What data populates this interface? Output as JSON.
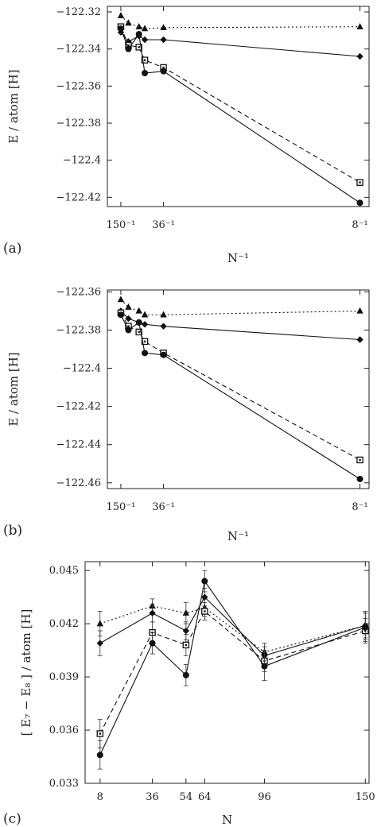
{
  "figure": {
    "panels": [
      {
        "label": "(a)"
      },
      {
        "label": "(b)"
      },
      {
        "label": "(c)"
      }
    ]
  },
  "chart_data": [
    {
      "panel": "(a)",
      "type": "line",
      "xlabel": "N⁻¹",
      "ylabel": "E / atom [H]",
      "xlim": [
        0.0,
        0.1295
      ],
      "ylim": [
        -122.425,
        -122.317
      ],
      "yticks": [
        -122.32,
        -122.34,
        -122.36,
        -122.38,
        -122.4,
        -122.42
      ],
      "ytick_labels": [
        "−122.32",
        "−122.34",
        "−122.36",
        "−122.38",
        "−122.4",
        "−122.42"
      ],
      "xticks": [
        0.006667,
        0.027778,
        0.125
      ],
      "xtick_labels": [
        "150⁻¹",
        "36⁻¹",
        "8⁻¹"
      ],
      "series": [
        {
          "marker": "triangle",
          "dash": "dotted",
          "x": [
            0.006667,
            0.010417,
            0.015625,
            0.018519,
            0.027778,
            0.125
          ],
          "y": [
            -122.322,
            -122.326,
            -122.328,
            -122.329,
            -122.3285,
            -122.328
          ]
        },
        {
          "marker": "diamond",
          "dash": "solid",
          "x": [
            0.006667,
            0.010417,
            0.015625,
            0.018519,
            0.027778,
            0.125
          ],
          "y": [
            -122.331,
            -122.336,
            -122.333,
            -122.335,
            -122.335,
            -122.344
          ]
        },
        {
          "marker": "square-open",
          "dash": "dashed",
          "x": [
            0.006667,
            0.010417,
            0.015625,
            0.018519,
            0.027778,
            0.125
          ],
          "y": [
            -122.328,
            -122.338,
            -122.339,
            -122.346,
            -122.35,
            -122.412
          ]
        },
        {
          "marker": "circle",
          "dash": "solid",
          "x": [
            0.006667,
            0.010417,
            0.015625,
            0.018519,
            0.027778,
            0.125
          ],
          "y": [
            -122.329,
            -122.34,
            -122.332,
            -122.353,
            -122.352,
            -122.423
          ]
        }
      ]
    },
    {
      "panel": "(b)",
      "type": "line",
      "xlabel": "N⁻¹",
      "ylabel": "E / atom [H]",
      "xlim": [
        0.0,
        0.1295
      ],
      "ylim": [
        -122.463,
        -122.359
      ],
      "yticks": [
        -122.36,
        -122.38,
        -122.4,
        -122.42,
        -122.44,
        -122.46
      ],
      "ytick_labels": [
        "−122.36",
        "−122.38",
        "−122.4",
        "−122.42",
        "−122.44",
        "−122.46"
      ],
      "xticks": [
        0.006667,
        0.027778,
        0.125
      ],
      "xtick_labels": [
        "150⁻¹",
        "36⁻¹",
        "8⁻¹"
      ],
      "series": [
        {
          "marker": "triangle",
          "dash": "dotted",
          "x": [
            0.006667,
            0.010417,
            0.015625,
            0.018519,
            0.027778,
            0.125
          ],
          "y": [
            -122.364,
            -122.368,
            -122.37,
            -122.372,
            -122.372,
            -122.37
          ]
        },
        {
          "marker": "diamond",
          "dash": "solid",
          "x": [
            0.006667,
            0.010417,
            0.015625,
            0.018519,
            0.027778,
            0.125
          ],
          "y": [
            -122.37,
            -122.374,
            -122.376,
            -122.377,
            -122.378,
            -122.385
          ]
        },
        {
          "marker": "square-open",
          "dash": "dashed",
          "x": [
            0.006667,
            0.010417,
            0.015625,
            0.018519,
            0.027778,
            0.125
          ],
          "y": [
            -122.371,
            -122.378,
            -122.381,
            -122.386,
            -122.392,
            -122.448
          ]
        },
        {
          "marker": "circle",
          "dash": "solid",
          "x": [
            0.006667,
            0.010417,
            0.015625,
            0.018519,
            0.027778,
            0.125
          ],
          "y": [
            -122.372,
            -122.38,
            -122.376,
            -122.392,
            -122.393,
            -122.458
          ]
        }
      ]
    },
    {
      "panel": "(c)",
      "type": "line",
      "xlabel": "N",
      "ylabel": "[ E₇ − E₈ ] / atom [H]",
      "xlim": [
        0,
        152
      ],
      "ylim": [
        0.033,
        0.0455
      ],
      "yticks": [
        0.033,
        0.036,
        0.039,
        0.042,
        0.045
      ],
      "ytick_labels": [
        "0.033",
        "0.036",
        "0.039",
        "0.042",
        "0.045"
      ],
      "xticks": [
        8,
        36,
        54,
        64,
        96,
        150
      ],
      "xtick_labels": [
        "8",
        "36",
        "54",
        "64",
        "96",
        "150"
      ],
      "series": [
        {
          "marker": "triangle",
          "dash": "dotted",
          "x": [
            8,
            36,
            54,
            64,
            96,
            150
          ],
          "y": [
            0.042,
            0.043,
            0.0426,
            0.0429,
            0.0404,
            0.0419
          ],
          "err": [
            0.0007,
            0.0004,
            0.0006,
            0.0005,
            0.0005,
            0.0008
          ]
        },
        {
          "marker": "diamond",
          "dash": "solid",
          "x": [
            8,
            36,
            54,
            64,
            96,
            150
          ],
          "y": [
            0.0409,
            0.0426,
            0.0416,
            0.0435,
            0.0402,
            0.0419
          ],
          "err": [
            0.0007,
            0.0005,
            0.0005,
            0.0005,
            0.0005,
            0.0007
          ]
        },
        {
          "marker": "square-open",
          "dash": "dashed",
          "x": [
            8,
            36,
            54,
            64,
            96,
            150
          ],
          "y": [
            0.0358,
            0.0415,
            0.0408,
            0.0427,
            0.0399,
            0.0416
          ],
          "err": [
            0.0008,
            0.0006,
            0.0006,
            0.0005,
            0.0006,
            0.0007
          ]
        },
        {
          "marker": "circle",
          "dash": "solid",
          "x": [
            8,
            36,
            54,
            64,
            96,
            150
          ],
          "y": [
            0.0346,
            0.0409,
            0.0391,
            0.0444,
            0.0396,
            0.0418
          ],
          "err": [
            0.0008,
            0.0006,
            0.0006,
            0.0006,
            0.0008,
            0.0008
          ]
        }
      ]
    }
  ]
}
